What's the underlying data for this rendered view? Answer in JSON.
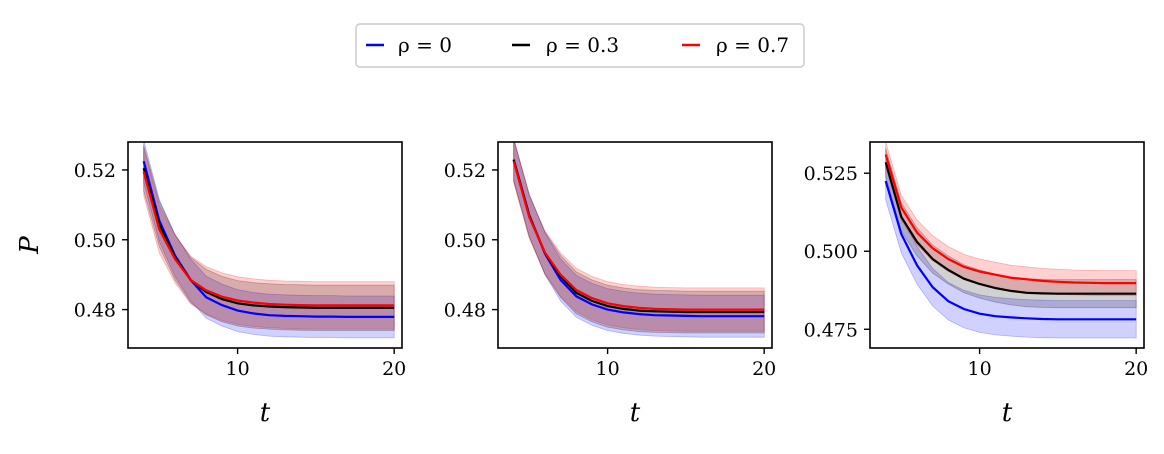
{
  "legend": {
    "entries": [
      {
        "label": "ρ = 0",
        "color": "#0000ff"
      },
      {
        "label": "ρ = 0.3",
        "color": "#000000"
      },
      {
        "label": "ρ = 0.7",
        "color": "#ff0000"
      }
    ],
    "placement": "top-center"
  },
  "chart_data": [
    {
      "type": "line",
      "xlabel": "t",
      "ylabel": "P",
      "xlim": [
        3,
        20.5
      ],
      "ylim": [
        0.469,
        0.528
      ],
      "xticks": [
        10,
        20
      ],
      "yticks": [
        0.48,
        0.5,
        0.52
      ],
      "ytick_labels": [
        "0.48",
        "0.50",
        "0.52"
      ],
      "x": [
        4,
        5,
        6,
        7,
        8,
        9,
        10,
        11,
        12,
        13,
        14,
        15,
        16,
        17,
        18,
        19,
        20
      ],
      "series": [
        {
          "name": "ρ = 0",
          "color": "#0000ff",
          "values": [
            0.5225,
            0.5055,
            0.4955,
            0.4885,
            0.4835,
            0.4813,
            0.4797,
            0.4789,
            0.4784,
            0.4782,
            0.4781,
            0.478,
            0.478,
            0.4779,
            0.4779,
            0.4779,
            0.4779
          ],
          "band_half_width": 0.006
        },
        {
          "name": "ρ = 0.3",
          "color": "#000000",
          "values": [
            0.5205,
            0.5045,
            0.495,
            0.4885,
            0.485,
            0.483,
            0.4818,
            0.4812,
            0.4809,
            0.4807,
            0.4806,
            0.4805,
            0.4805,
            0.4805,
            0.4805,
            0.4805,
            0.4805
          ],
          "band_half_width": 0.0065
        },
        {
          "name": "ρ = 0.7",
          "color": "#ff0000",
          "values": [
            0.5195,
            0.503,
            0.4945,
            0.4885,
            0.4855,
            0.4837,
            0.4826,
            0.482,
            0.4816,
            0.4814,
            0.4813,
            0.4812,
            0.4812,
            0.4812,
            0.4812,
            0.4812,
            0.4812
          ],
          "band_half_width": 0.0068
        }
      ]
    },
    {
      "type": "line",
      "xlabel": "t",
      "ylabel": "",
      "xlim": [
        3,
        20.5
      ],
      "ylim": [
        0.469,
        0.528
      ],
      "xticks": [
        10,
        20
      ],
      "yticks": [
        0.48,
        0.5,
        0.52
      ],
      "ytick_labels": [
        "0.48",
        "0.50",
        "0.52"
      ],
      "x": [
        4,
        5,
        6,
        7,
        8,
        9,
        10,
        11,
        12,
        13,
        14,
        15,
        16,
        17,
        18,
        19,
        20
      ],
      "series": [
        {
          "name": "ρ = 0",
          "color": "#0000ff",
          "values": [
            0.523,
            0.507,
            0.496,
            0.4885,
            0.4838,
            0.4815,
            0.48,
            0.4792,
            0.4787,
            0.4784,
            0.4783,
            0.4782,
            0.4781,
            0.4781,
            0.4781,
            0.4781,
            0.4781
          ],
          "band_half_width": 0.006
        },
        {
          "name": "ρ = 0.3",
          "color": "#000000",
          "values": [
            0.5228,
            0.5068,
            0.4962,
            0.4895,
            0.4848,
            0.4825,
            0.481,
            0.4802,
            0.4797,
            0.4795,
            0.4794,
            0.4793,
            0.4793,
            0.4793,
            0.4793,
            0.4793,
            0.4793
          ],
          "band_half_width": 0.006
        },
        {
          "name": "ρ = 0.7",
          "color": "#ff0000",
          "values": [
            0.5225,
            0.5065,
            0.4963,
            0.49,
            0.4856,
            0.4833,
            0.4818,
            0.481,
            0.4805,
            0.4802,
            0.4801,
            0.48,
            0.48,
            0.48,
            0.48,
            0.48,
            0.48
          ],
          "band_half_width": 0.0062
        }
      ]
    },
    {
      "type": "line",
      "xlabel": "t",
      "ylabel": "",
      "xlim": [
        3,
        20.5
      ],
      "ylim": [
        0.469,
        0.535
      ],
      "xticks": [
        10,
        20
      ],
      "yticks": [
        0.475,
        0.5,
        0.525
      ],
      "ytick_labels": [
        "0.475",
        "0.500",
        "0.525"
      ],
      "x": [
        4,
        5,
        6,
        7,
        8,
        9,
        10,
        11,
        12,
        13,
        14,
        15,
        16,
        17,
        18,
        19,
        20
      ],
      "series": [
        {
          "name": "ρ = 0",
          "color": "#0000ff",
          "values": [
            0.5225,
            0.5055,
            0.4955,
            0.4885,
            0.484,
            0.4815,
            0.48,
            0.4792,
            0.4788,
            0.4785,
            0.4783,
            0.4782,
            0.4782,
            0.4782,
            0.4782,
            0.4782,
            0.4782
          ],
          "band_half_width": 0.006
        },
        {
          "name": "ρ = 0.3",
          "color": "#000000",
          "values": [
            0.5285,
            0.511,
            0.503,
            0.4975,
            0.494,
            0.4912,
            0.4895,
            0.4882,
            0.4873,
            0.4867,
            0.4865,
            0.4864,
            0.4864,
            0.4864,
            0.4864,
            0.4864,
            0.4864
          ],
          "band_half_width": 0.0045
        },
        {
          "name": "ρ = 0.7",
          "color": "#ff0000",
          "values": [
            0.531,
            0.514,
            0.506,
            0.501,
            0.4975,
            0.495,
            0.4935,
            0.4925,
            0.4915,
            0.491,
            0.4905,
            0.4902,
            0.49,
            0.4899,
            0.4898,
            0.4898,
            0.4898
          ],
          "band_half_width": 0.004
        }
      ]
    }
  ]
}
